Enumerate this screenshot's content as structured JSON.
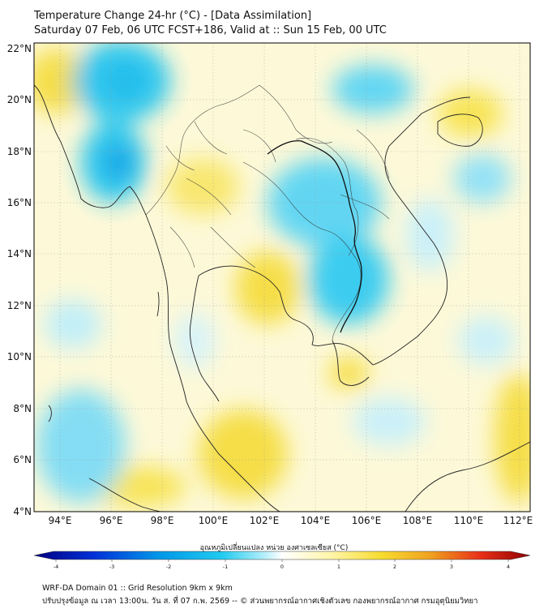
{
  "header": {
    "title": "Temperature Change 24-hr (°C) - [Data Assimilation]",
    "subtitle": "Saturday 07 Feb, 06 UTC FCST+186, Valid at :: Sun 15 Feb, 00 UTC"
  },
  "map": {
    "lat_labels": [
      "22°N",
      "20°N",
      "18°N",
      "16°N",
      "14°N",
      "12°N",
      "10°N",
      "8°N",
      "6°N",
      "4°N"
    ],
    "lon_labels": [
      "94°E",
      "96°E",
      "98°E",
      "100°E",
      "102°E",
      "104°E",
      "106°E",
      "108°E",
      "110°E",
      "112°E"
    ],
    "colors": {
      "cold_strong": "#00b4f0",
      "cold_light": "#9fe6fb",
      "neutral": "#ffffff",
      "warm_light": "#fff6b0",
      "warm_mid": "#f5dd40",
      "border": "#222222"
    }
  },
  "colorbar": {
    "title": "อุณหภูมิเปลี่ยนแปลง หน่วย องศาเซลเซียส (°C)",
    "ticks": [
      "-4",
      "-3",
      "-2",
      "-1",
      "0",
      "1",
      "2",
      "3",
      "4"
    ],
    "colors": [
      "#000080",
      "#0030d8",
      "#0096e8",
      "#22ccf0",
      "#bff1fb",
      "#ffffff",
      "#fff5a8",
      "#f7dc30",
      "#f0a020",
      "#e83018",
      "#900000"
    ]
  },
  "footer": {
    "line1": "WRF-DA Domain 01 :: Grid Resolution 9km x 9km",
    "line2": "ปรับปรุงข้อมูล ณ เวลา 13:00น. วัน ส. ที่ 07 ก.พ. 2569 -- © ส่วนพยากรณ์อากาศเชิงตัวเลข กองพยากรณ์อากาศ กรมอุตุนิยมวิทยา"
  }
}
